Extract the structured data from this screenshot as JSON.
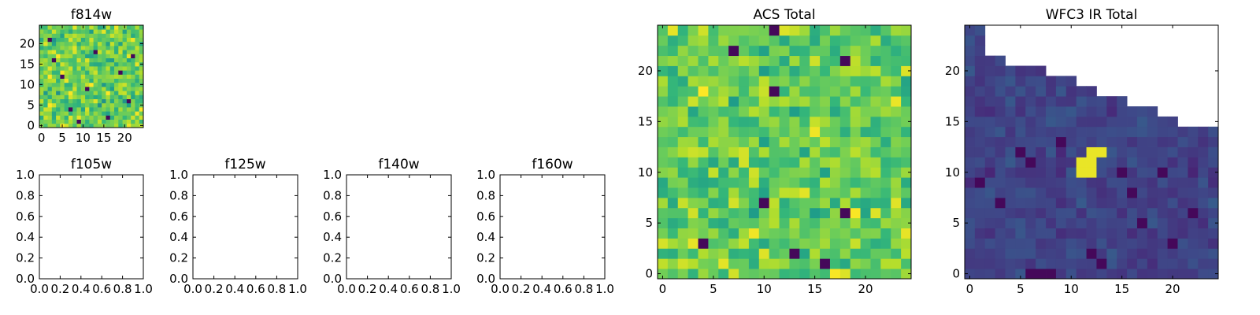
{
  "chart_data": [
    {
      "id": "f814w",
      "type": "heatmap",
      "title": "f814w",
      "colormap": "viridis",
      "value_range": [
        0,
        1
      ],
      "x_range": [
        -0.5,
        24.5
      ],
      "y_range": [
        -0.5,
        24.5
      ],
      "x_ticks": [
        0,
        5,
        10,
        15,
        20
      ],
      "x_tick_labels": [
        "0",
        "5",
        "10",
        "15",
        "20"
      ],
      "y_ticks": [
        0,
        5,
        10,
        15,
        20
      ],
      "y_tick_labels": [
        "0",
        "5",
        "10",
        "15",
        "20"
      ],
      "grid_size": [
        25,
        25
      ],
      "pattern": "noise",
      "distribution": {
        "mean": 0.78,
        "spread": 0.28
      },
      "dark_cells": [
        [
          2,
          21
        ],
        [
          7,
          4
        ],
        [
          11,
          9
        ],
        [
          16,
          2
        ],
        [
          19,
          13
        ],
        [
          22,
          17
        ],
        [
          5,
          12
        ],
        [
          13,
          18
        ],
        [
          9,
          1
        ],
        [
          21,
          6
        ],
        [
          3,
          16
        ]
      ],
      "masked_top": []
    },
    {
      "id": "acs-total",
      "type": "heatmap",
      "title": "ACS Total",
      "colormap": "viridis",
      "value_range": [
        0,
        1
      ],
      "x_range": [
        -0.5,
        24.5
      ],
      "y_range": [
        -0.5,
        24.5
      ],
      "x_ticks": [
        0,
        5,
        10,
        15,
        20
      ],
      "x_tick_labels": [
        "0",
        "5",
        "10",
        "15",
        "20"
      ],
      "y_ticks": [
        0,
        5,
        10,
        15,
        20
      ],
      "y_tick_labels": [
        "0",
        "5",
        "10",
        "15",
        "20"
      ],
      "grid_size": [
        25,
        25
      ],
      "pattern": "noise",
      "distribution": {
        "mean": 0.76,
        "spread": 0.26
      },
      "dark_cells": [
        [
          11,
          24
        ],
        [
          7,
          22
        ],
        [
          18,
          21
        ],
        [
          11,
          18
        ],
        [
          10,
          7
        ],
        [
          18,
          6
        ],
        [
          4,
          3
        ],
        [
          13,
          2
        ],
        [
          16,
          1
        ]
      ],
      "masked_top": []
    },
    {
      "id": "wfc3-ir-total",
      "type": "heatmap",
      "title": "WFC3 IR Total",
      "colormap": "viridis",
      "value_range": [
        0,
        1
      ],
      "x_range": [
        -0.5,
        24.5
      ],
      "y_range": [
        -0.5,
        24.5
      ],
      "x_ticks": [
        0,
        5,
        10,
        15,
        20
      ],
      "x_tick_labels": [
        "0",
        "5",
        "10",
        "15",
        "20"
      ],
      "y_ticks": [
        0,
        5,
        10,
        15,
        20
      ],
      "y_tick_labels": [
        "0",
        "5",
        "10",
        "15",
        "20"
      ],
      "grid_size": [
        25,
        25
      ],
      "pattern": "noise",
      "distribution": {
        "mean": 0.2,
        "spread": 0.1
      },
      "bright_cells": [
        [
          11,
          11
        ],
        [
          12,
          11
        ],
        [
          12,
          12
        ],
        [
          11,
          10
        ],
        [
          12,
          10
        ],
        [
          13,
          12
        ]
      ],
      "dark_cells": [
        [
          5,
          12
        ],
        [
          6,
          11
        ],
        [
          9,
          13
        ],
        [
          15,
          10
        ],
        [
          16,
          8
        ],
        [
          19,
          10
        ],
        [
          12,
          2
        ],
        [
          13,
          1
        ],
        [
          6,
          0
        ],
        [
          7,
          0
        ],
        [
          8,
          0
        ],
        [
          17,
          5
        ],
        [
          3,
          7
        ],
        [
          1,
          9
        ],
        [
          20,
          3
        ],
        [
          22,
          6
        ]
      ],
      "masked_top": [
        24,
        24,
        21,
        21,
        20,
        20,
        20,
        20,
        19,
        19,
        19,
        18,
        18,
        17,
        17,
        17,
        16,
        16,
        16,
        15,
        15,
        14,
        14,
        14,
        14
      ]
    },
    {
      "id": "f105w",
      "type": "empty",
      "title": "f105w",
      "x_range": [
        0,
        1
      ],
      "y_range": [
        0,
        1
      ],
      "x_ticks": [
        0,
        0.2,
        0.4,
        0.6,
        0.8,
        1.0
      ],
      "x_tick_labels": [
        "0.0",
        "0.2",
        "0.4",
        "0.6",
        "0.8",
        "1.0"
      ],
      "y_ticks": [
        0,
        0.2,
        0.4,
        0.6,
        0.8,
        1.0
      ],
      "y_tick_labels": [
        "0.0",
        "0.2",
        "0.4",
        "0.6",
        "0.8",
        "1.0"
      ]
    },
    {
      "id": "f125w",
      "type": "empty",
      "title": "f125w",
      "x_range": [
        0,
        1
      ],
      "y_range": [
        0,
        1
      ],
      "x_ticks": [
        0,
        0.2,
        0.4,
        0.6,
        0.8,
        1.0
      ],
      "x_tick_labels": [
        "0.0",
        "0.2",
        "0.4",
        "0.6",
        "0.8",
        "1.0"
      ],
      "y_ticks": [
        0,
        0.2,
        0.4,
        0.6,
        0.8,
        1.0
      ],
      "y_tick_labels": [
        "0.0",
        "0.2",
        "0.4",
        "0.6",
        "0.8",
        "1.0"
      ]
    },
    {
      "id": "f140w",
      "type": "empty",
      "title": "f140w",
      "x_range": [
        0,
        1
      ],
      "y_range": [
        0,
        1
      ],
      "x_ticks": [
        0,
        0.2,
        0.4,
        0.6,
        0.8,
        1.0
      ],
      "x_tick_labels": [
        "0.0",
        "0.2",
        "0.4",
        "0.6",
        "0.8",
        "1.0"
      ],
      "y_ticks": [
        0,
        0.2,
        0.4,
        0.6,
        0.8,
        1.0
      ],
      "y_tick_labels": [
        "0.0",
        "0.2",
        "0.4",
        "0.6",
        "0.8",
        "1.0"
      ]
    },
    {
      "id": "f160w",
      "type": "empty",
      "title": "f160w",
      "x_range": [
        0,
        1
      ],
      "y_range": [
        0,
        1
      ],
      "x_ticks": [
        0,
        0.2,
        0.4,
        0.6,
        0.8,
        1.0
      ],
      "x_tick_labels": [
        "0.0",
        "0.2",
        "0.4",
        "0.6",
        "0.8",
        "1.0"
      ],
      "y_ticks": [
        0,
        0.2,
        0.4,
        0.6,
        0.8,
        1.0
      ],
      "y_tick_labels": [
        "0.0",
        "0.2",
        "0.4",
        "0.6",
        "0.8",
        "1.0"
      ]
    }
  ]
}
